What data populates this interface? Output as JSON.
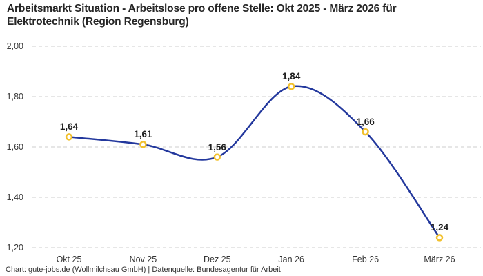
{
  "title": "Arbeitsmarkt Situation - Arbeitslose pro offene Stelle: Okt 2025 - März 2026 für Elektrotechnik (Region Regensburg)",
  "footer": "Chart: gute-jobs.de (Wollmilchsau GmbH) | Datenquelle: Bundesagentur für Arbeit",
  "chart_data": {
    "type": "line",
    "title": "Arbeitsmarkt Situation - Arbeitslose pro offene Stelle: Okt 2025 - März 2026 für Elektrotechnik (Region Regensburg)",
    "categories": [
      "Okt 25",
      "Nov 25",
      "Dez 25",
      "Jan 26",
      "Feb 26",
      "März 26"
    ],
    "values": [
      1.64,
      1.61,
      1.56,
      1.84,
      1.66,
      1.24
    ],
    "value_labels": [
      "1,64",
      "1,61",
      "1,56",
      "1,84",
      "1,66",
      "1,24"
    ],
    "yticks": [
      "2,00",
      "1,80",
      "1,60",
      "1,40",
      "1,20"
    ],
    "ylim": [
      1.2,
      2.0
    ],
    "xlabel": "",
    "ylabel": "",
    "grid": "horizontal-dashed",
    "legend": "none",
    "line_color": "#23389d",
    "marker_color": "#f2c12e",
    "marker_fill": "#ffffff",
    "source_note": "Chart: gute-jobs.de (Wollmilchsau GmbH) | Datenquelle: Bundesagentur für Arbeit"
  }
}
